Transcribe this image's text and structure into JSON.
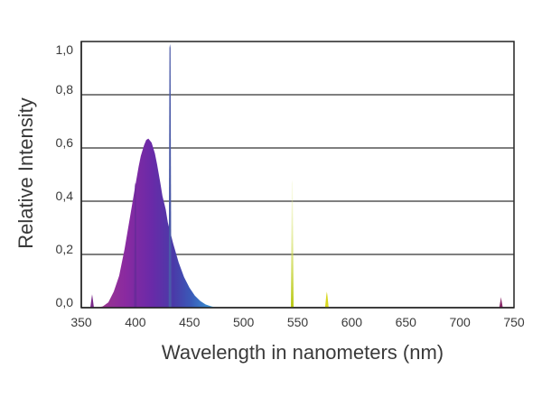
{
  "chart_data": {
    "type": "area",
    "title": "",
    "xlabel": "Wavelength in nanometers (nm)",
    "ylabel": "Relative  Intensity",
    "xlim": [
      350,
      750
    ],
    "ylim": [
      0,
      1.0
    ],
    "grid": "horizontal",
    "x_ticks": [
      350,
      400,
      450,
      500,
      550,
      600,
      650,
      700,
      750
    ],
    "x_tick_labels": [
      "350",
      "400",
      "450",
      "500",
      "550",
      "600",
      "650",
      "700",
      "750"
    ],
    "y_ticks": [
      0.0,
      0.2,
      0.4,
      0.6,
      0.8,
      1.0
    ],
    "y_tick_labels": [
      "0,0",
      "0,2",
      "0,4",
      "0,6",
      "0,8",
      "1,0"
    ],
    "series": [
      {
        "x": [
          355,
          360,
          365,
          370,
          375,
          380,
          385,
          390,
          395,
          400,
          403,
          405,
          408,
          410,
          412,
          415,
          418,
          420,
          423,
          425,
          428,
          430,
          435,
          440,
          445,
          450,
          455,
          460,
          465,
          470,
          475
        ],
        "y": [
          0.0,
          0.0,
          0.0,
          0.005,
          0.02,
          0.06,
          0.12,
          0.22,
          0.34,
          0.46,
          0.53,
          0.57,
          0.61,
          0.63,
          0.635,
          0.62,
          0.58,
          0.54,
          0.47,
          0.42,
          0.37,
          0.32,
          0.24,
          0.17,
          0.115,
          0.075,
          0.045,
          0.025,
          0.012,
          0.005,
          0.0
        ],
        "values": [
          {
            "x": 355,
            "y": 0.0
          },
          {
            "x": 400,
            "y": 0.46
          },
          {
            "x": 412,
            "y": 0.635
          },
          {
            "x": 475,
            "y": 0.0
          }
        ]
      }
    ],
    "spikes": [
      {
        "x": 360,
        "y": 0.05,
        "color": "#7a2a8a"
      },
      {
        "x": 400,
        "y": 0.47,
        "color": "#6a2a9a"
      },
      {
        "x": 432,
        "y": 0.99,
        "color": "#4a5aa8"
      },
      {
        "x": 545,
        "y": 0.48,
        "color": "#c8d820"
      },
      {
        "x": 577,
        "y": 0.06,
        "color": "#d8d820"
      },
      {
        "x": 738,
        "y": 0.04,
        "color": "#8a2a6a"
      }
    ],
    "colors": {
      "violet": "#7a2a9a",
      "blue": "#3a5ab8",
      "cyan": "#3ab4e0",
      "grid": "#333333",
      "axis": "#222222"
    }
  }
}
